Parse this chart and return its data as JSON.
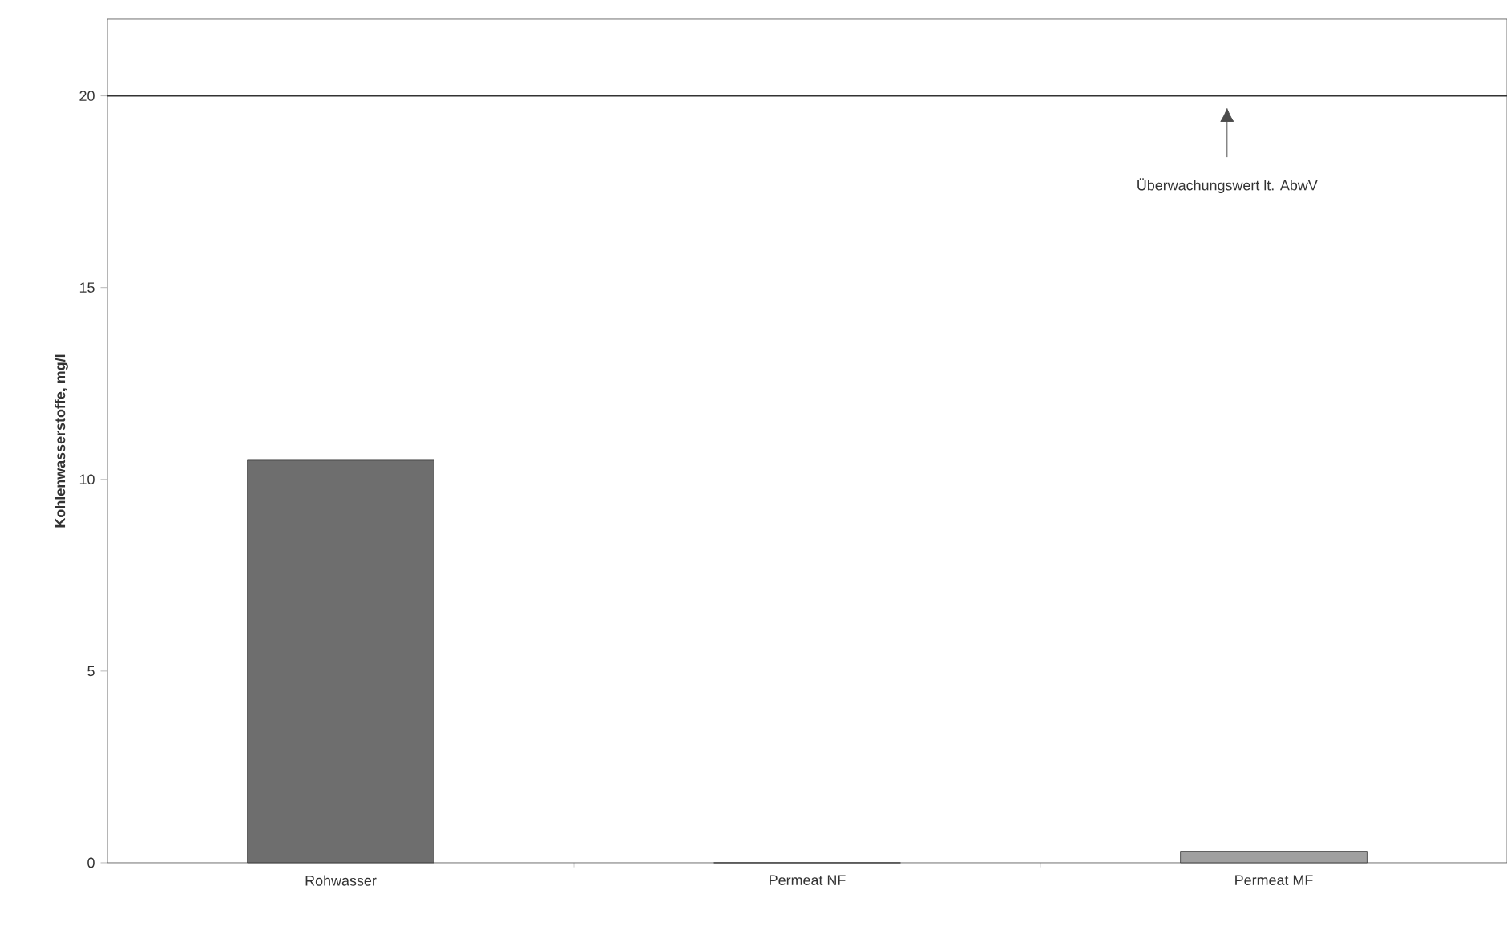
{
  "chart_data": {
    "type": "bar",
    "ylabel": "Kohlenwasserstoffe, mg/l",
    "categories": [
      "Rohwasser",
      "Permeat NF",
      "Permeat MF"
    ],
    "values": [
      10.5,
      0,
      0.3
    ],
    "colors": [
      "#6e6e6e",
      "#808080",
      "#a0a0a0"
    ],
    "ylim": [
      0,
      22
    ],
    "yticks": [
      0,
      5,
      10,
      15,
      20
    ],
    "ref_lines": [
      {
        "axis": "y",
        "value": 20,
        "label": "Überwachungswert lt. AbwV",
        "color": "#333333"
      }
    ]
  }
}
